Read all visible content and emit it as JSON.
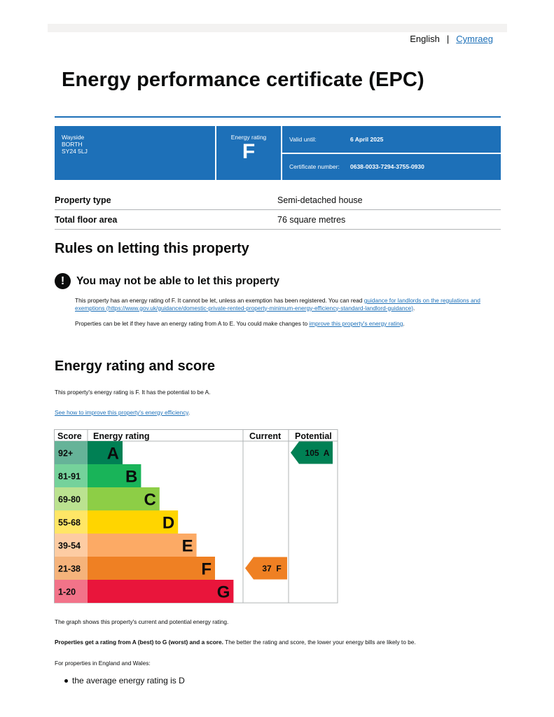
{
  "language": {
    "english": "English",
    "separator": "|",
    "welsh": "Cymraeg"
  },
  "title": "Energy performance certificate (EPC)",
  "header": {
    "address": [
      "Wayside",
      "BORTH",
      "SY24 5LJ"
    ],
    "rating_label": "Energy rating",
    "rating_value": "F",
    "valid_until_label": "Valid until:",
    "valid_until_value": "6 April 2025",
    "certificate_label": "Certificate number:",
    "certificate_value": "0638-0033-7294-3755-0930"
  },
  "property": [
    {
      "label": "Property type",
      "value": "Semi-detached house"
    },
    {
      "label": "Total floor area",
      "value": "76 square metres"
    }
  ],
  "rules": {
    "heading": "Rules on letting this property",
    "warning": "You may not be able to let this property",
    "para1_text": "This property has an energy rating of F. It cannot be let, unless an exemption has been registered. You can read ",
    "para1_link": "guidance for landlords on the regulations and exemptions (https://www.gov.uk/guidance/domestic-private-rented-property-minimum-energy-efficiency-standard-landlord-guidance)",
    "para1_end": ".",
    "para2_text": "Properties can be let if they have an energy rating from A to E. You could make changes to ",
    "para2_link": "improve this property's energy rating",
    "para2_end": "."
  },
  "energy": {
    "heading": "Energy rating and score",
    "summary": "This property's energy rating is F. It has the potential to be A.",
    "improve_link": "See how to improve this property's energy efficiency",
    "improve_end": ".",
    "graph_note": "The graph shows this property's current and potential energy rating.",
    "scale_bold": "Properties get a rating from A (best) to G (worst) and a score.",
    "scale_rest": " The better the rating and score, the lower your energy bills are likely to be.",
    "england_wales": "For properties in England and Wales:",
    "bullets": [
      "the average energy rating is D"
    ]
  },
  "chart_data": {
    "type": "table",
    "headers": {
      "score": "Score",
      "rating": "Energy rating",
      "current": "Current",
      "potential": "Potential"
    },
    "bands": [
      {
        "score": "92+",
        "letter": "A",
        "color": "#008054",
        "score_bg": "#66b398"
      },
      {
        "score": "81-91",
        "letter": "B",
        "color": "#19b459",
        "score_bg": "#75d29b"
      },
      {
        "score": "69-80",
        "letter": "C",
        "color": "#8dce46",
        "score_bg": "#bbe290"
      },
      {
        "score": "55-68",
        "letter": "D",
        "color": "#ffd500",
        "score_bg": "#ffe666"
      },
      {
        "score": "39-54",
        "letter": "E",
        "color": "#fcaa65",
        "score_bg": "#fdcca3"
      },
      {
        "score": "21-38",
        "letter": "F",
        "color": "#ef8023",
        "score_bg": "#f5b37b"
      },
      {
        "score": "1-20",
        "letter": "G",
        "color": "#e9153b",
        "score_bg": "#f27389"
      }
    ],
    "current": {
      "score": 37,
      "letter": "F",
      "label": "37  F",
      "color": "#ef8023"
    },
    "potential": {
      "score": 105,
      "letter": "A",
      "label": "105  A",
      "color": "#008054"
    }
  }
}
